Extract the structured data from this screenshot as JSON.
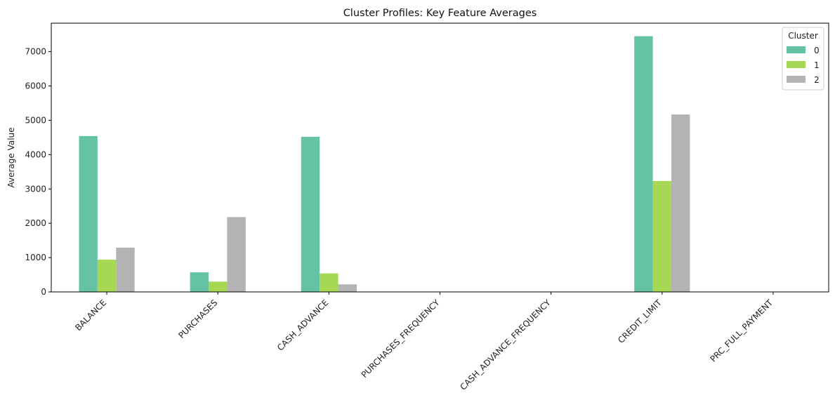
{
  "chart_data": {
    "type": "bar",
    "title": "Cluster Profiles: Key Feature Averages",
    "xlabel": "",
    "ylabel": "Average Value",
    "categories": [
      "BALANCE",
      "PURCHASES",
      "CASH_ADVANCE",
      "PURCHASES_FREQUENCY",
      "CASH_ADVANCE_FREQUENCY",
      "CREDIT_LIMIT",
      "PRC_FULL_PAYMENT"
    ],
    "series": [
      {
        "name": "0",
        "color": "#66c2a5",
        "values": [
          4540,
          570,
          4520,
          0.3,
          0.4,
          7450,
          0.03
        ]
      },
      {
        "name": "1",
        "color": "#a6d854",
        "values": [
          940,
          300,
          540,
          0.1,
          0.1,
          3230,
          0.05
        ]
      },
      {
        "name": "2",
        "color": "#b3b3b3",
        "values": [
          1290,
          2180,
          220,
          0.8,
          0.03,
          5170,
          0.25
        ]
      }
    ],
    "ylim": [
      0,
      7830
    ],
    "yticks": [
      0,
      1000,
      2000,
      3000,
      4000,
      5000,
      6000,
      7000
    ],
    "legend": {
      "title": "Cluster",
      "placement": "top-right"
    },
    "grid": false
  }
}
